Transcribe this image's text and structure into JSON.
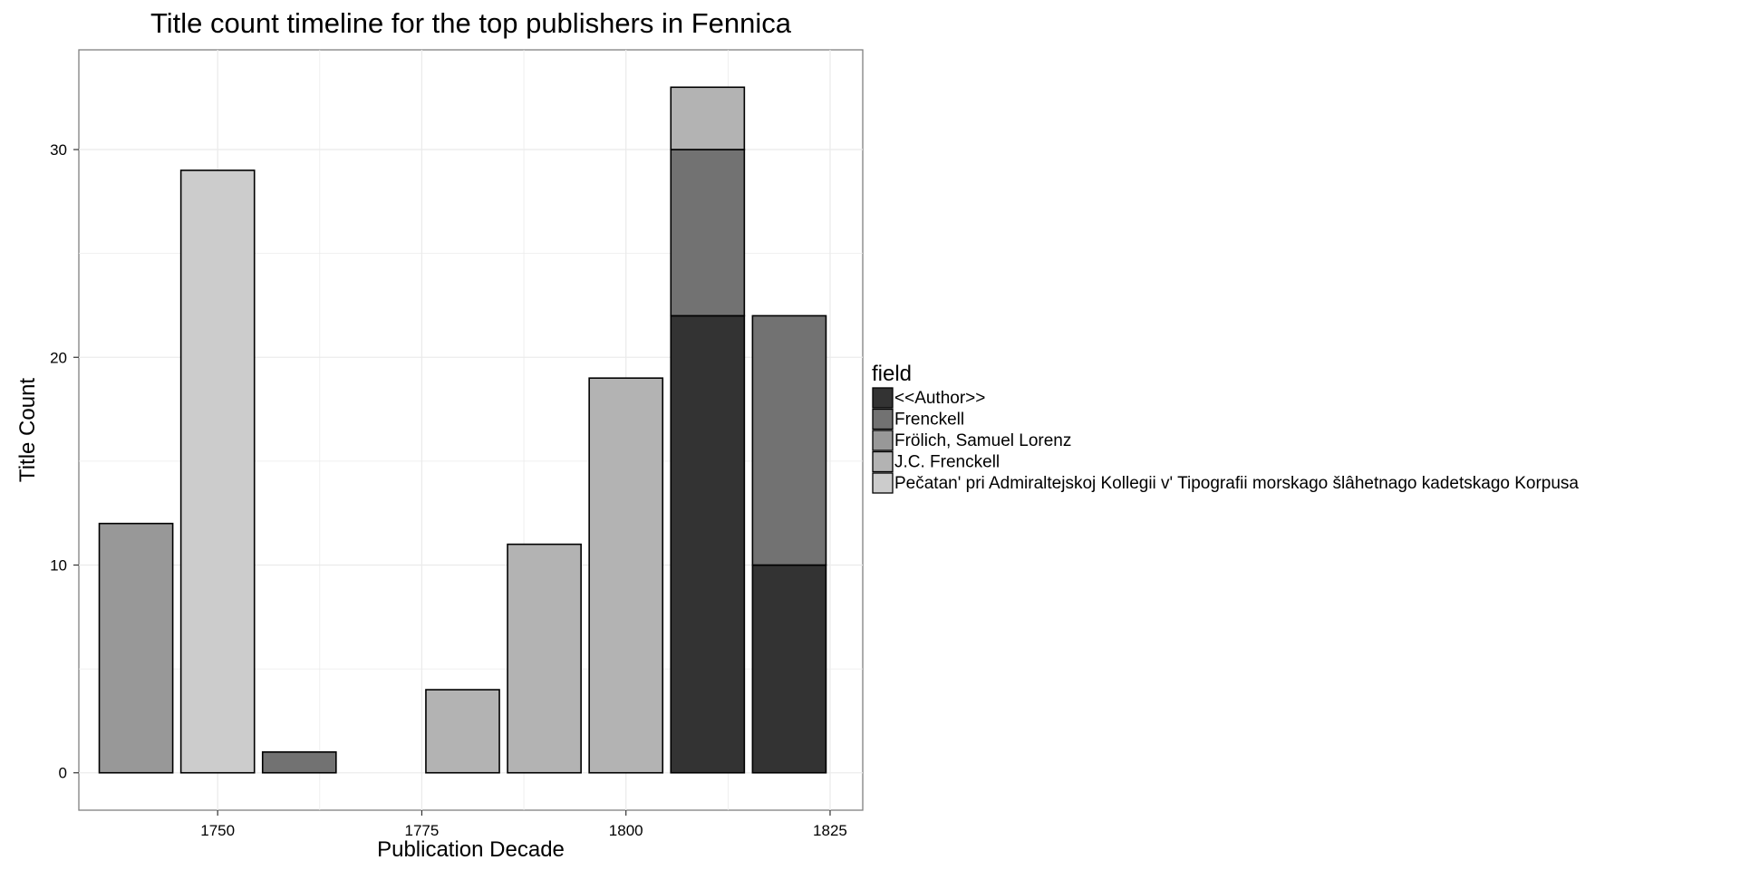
{
  "chart_data": {
    "type": "bar",
    "stacked": true,
    "title": "Title count timeline for the top publishers in Fennica",
    "xlabel": "Publication Decade",
    "ylabel": "Title Count",
    "xlim": [
      1733,
      1829
    ],
    "ylim": [
      -1.8,
      34.8
    ],
    "x_ticks": [
      1750,
      1775,
      1800,
      1825
    ],
    "y_ticks": [
      0,
      10,
      20,
      30
    ],
    "grid": true,
    "legend_title": "field",
    "legend_position": "right",
    "categories": [
      1740,
      1750,
      1760,
      1770,
      1780,
      1790,
      1800,
      1810,
      1820
    ],
    "series": [
      {
        "name": "<<Author>>",
        "color": "#333333",
        "values": [
          0,
          0,
          0,
          0,
          0,
          0,
          0,
          22,
          10
        ]
      },
      {
        "name": "Frenckell",
        "color": "#727272",
        "values": [
          0,
          0,
          1,
          0,
          0,
          0,
          0,
          8,
          12
        ]
      },
      {
        "name": "Frölich, Samuel Lorenz",
        "color": "#989898",
        "values": [
          12,
          0,
          0,
          0,
          0,
          0,
          0,
          0,
          0
        ]
      },
      {
        "name": "J.C. Frenckell",
        "color": "#b3b3b3",
        "values": [
          0,
          0,
          0,
          0,
          4,
          11,
          19,
          3,
          0
        ]
      },
      {
        "name": "Pečatan' pri Admiraltejskoj Kollegii v' Tipografii morskago šlâhetnago kadetskago Korpusa",
        "color": "#cccccc",
        "values": [
          0,
          29,
          0,
          0,
          0,
          0,
          0,
          0,
          0
        ]
      }
    ]
  }
}
